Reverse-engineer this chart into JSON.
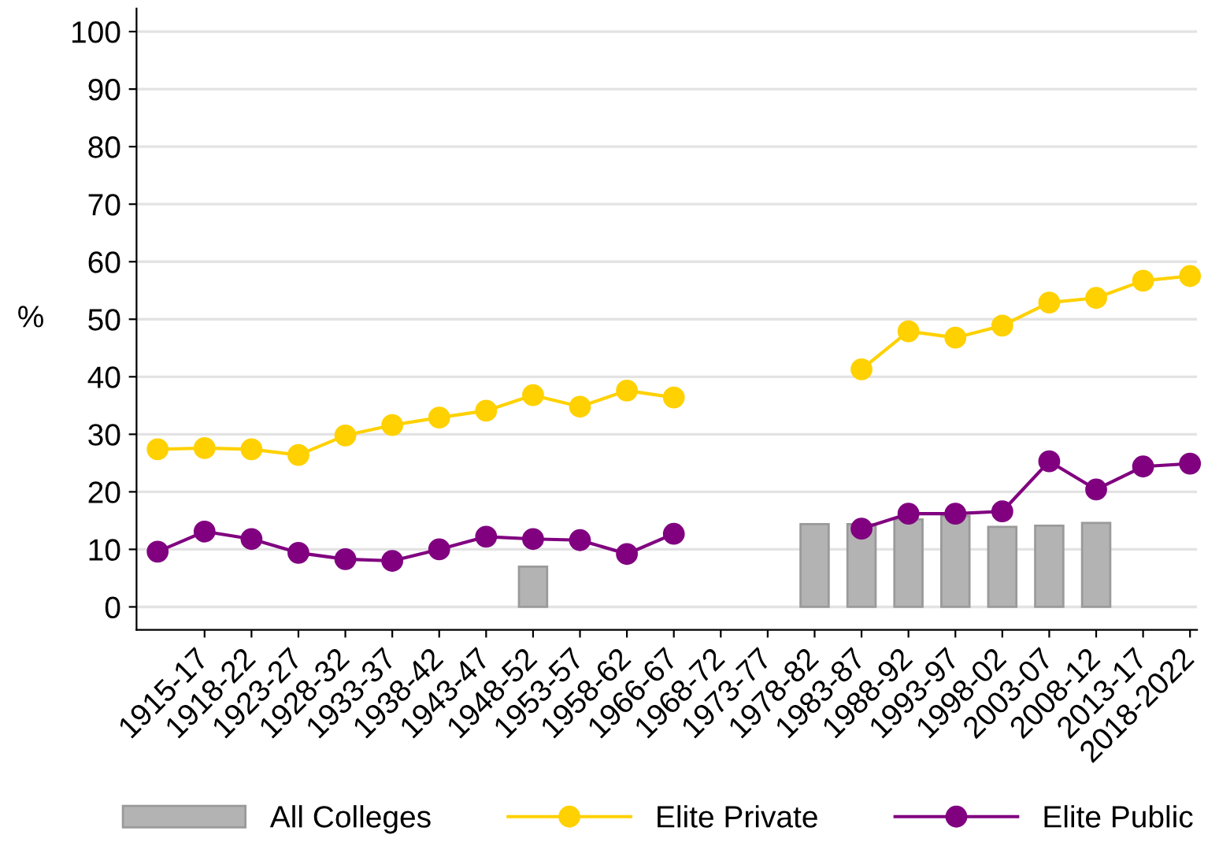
{
  "chart_data": {
    "type": "line",
    "ylabel": "%",
    "categories": [
      null,
      "1915-17",
      "1918-22",
      "1923-27",
      "1928-32",
      "1933-37",
      "1938-42",
      "1943-47",
      "1948-52",
      "1953-57",
      "1958-62",
      "1966-67",
      "1968-72",
      "1973-77",
      "1978-82",
      "1983-87",
      "1988-92",
      "1993-97",
      "1998-02",
      "2003-07",
      "2008-12",
      "2013-17",
      "2018-2022"
    ],
    "series": [
      {
        "name": "All Colleges",
        "type": "bar",
        "color": "#b3b3b3",
        "values": [
          null,
          null,
          null,
          null,
          null,
          null,
          null,
          null,
          7.0,
          null,
          null,
          null,
          null,
          null,
          14.4,
          14.4,
          15.2,
          15.8,
          13.9,
          14.1,
          14.6,
          null,
          null
        ]
      },
      {
        "name": "Elite Private",
        "color": "#ffd100",
        "values": [
          27.4,
          27.6,
          27.4,
          26.4,
          29.8,
          31.6,
          32.9,
          34.1,
          36.8,
          34.8,
          37.6,
          36.4,
          null,
          null,
          null,
          41.3,
          47.9,
          46.8,
          48.9,
          52.9,
          53.7,
          56.7,
          57.5
        ]
      },
      {
        "name": "Elite Public",
        "color": "#800080",
        "values": [
          9.6,
          13.1,
          11.8,
          9.4,
          8.3,
          8.0,
          10.0,
          12.2,
          11.8,
          11.6,
          9.2,
          12.7,
          null,
          null,
          null,
          13.6,
          16.2,
          16.2,
          16.6,
          25.3,
          20.4,
          24.4,
          24.9
        ]
      }
    ],
    "ylim": [
      -4,
      104
    ],
    "yticks": [
      0,
      10,
      20,
      30,
      40,
      50,
      60,
      70,
      80,
      90,
      100
    ],
    "grid": "y",
    "legend": "bottom",
    "marker": "circle"
  }
}
